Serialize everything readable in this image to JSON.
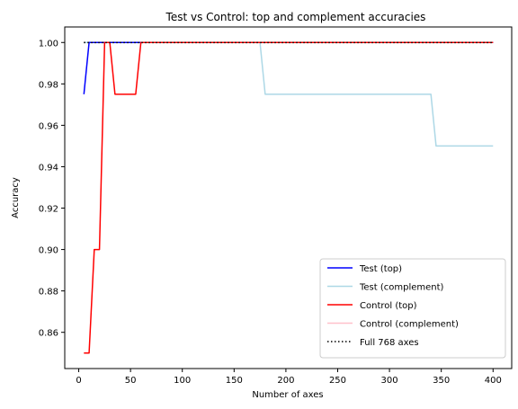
{
  "chart_data": {
    "type": "line",
    "title": "Test vs Control: top and complement accuracies",
    "xlabel": "Number of axes",
    "ylabel": "Accuracy",
    "xlim": [
      -13.5,
      418
    ],
    "ylim": [
      0.8425,
      1.0075
    ],
    "xticks": [
      0,
      50,
      100,
      150,
      200,
      250,
      300,
      350,
      400
    ],
    "yticks": [
      0.86,
      0.88,
      0.9,
      0.92,
      0.94,
      0.96,
      0.98,
      1.0
    ],
    "ytick_labels": [
      "0.86",
      "0.88",
      "0.90",
      "0.92",
      "0.94",
      "0.96",
      "0.98",
      "1.00"
    ],
    "grid": false,
    "legend_position": "lower-right",
    "series": [
      {
        "name": "Test (top)",
        "color": "#0000ff",
        "style": "solid",
        "x": [
          5,
          10,
          15,
          20,
          25,
          30,
          35,
          40,
          45,
          50,
          55,
          60,
          65,
          70,
          75,
          80,
          85,
          90,
          95,
          100,
          150,
          200,
          250,
          300,
          350,
          400
        ],
        "y": [
          0.975,
          1.0,
          1.0,
          1.0,
          1.0,
          1.0,
          1.0,
          1.0,
          1.0,
          1.0,
          1.0,
          1.0,
          1.0,
          1.0,
          1.0,
          1.0,
          1.0,
          1.0,
          1.0,
          1.0,
          1.0,
          1.0,
          1.0,
          1.0,
          1.0,
          1.0
        ]
      },
      {
        "name": "Test (complement)",
        "color": "#add8e6",
        "style": "solid",
        "x": [
          5,
          50,
          100,
          150,
          175,
          180,
          200,
          250,
          300,
          340,
          345,
          350,
          400
        ],
        "y": [
          1.0,
          1.0,
          1.0,
          1.0,
          1.0,
          0.975,
          0.975,
          0.975,
          0.975,
          0.975,
          0.95,
          0.95,
          0.95
        ]
      },
      {
        "name": "Control (top)",
        "color": "#ff0000",
        "style": "solid",
        "x": [
          5,
          10,
          15,
          20,
          25,
          30,
          35,
          40,
          45,
          50,
          55,
          60,
          65,
          70,
          100,
          150,
          200,
          250,
          300,
          350,
          400
        ],
        "y": [
          0.85,
          0.85,
          0.9,
          0.9,
          1.0,
          1.0,
          0.975,
          0.975,
          0.975,
          0.975,
          0.975,
          1.0,
          1.0,
          1.0,
          1.0,
          1.0,
          1.0,
          1.0,
          1.0,
          1.0,
          1.0
        ]
      },
      {
        "name": "Control (complement)",
        "color": "#ffc0cb",
        "style": "solid",
        "x": [
          5,
          50,
          100,
          150,
          200,
          250,
          300,
          350,
          400
        ],
        "y": [
          1.0,
          1.0,
          1.0,
          1.0,
          1.0,
          1.0,
          1.0,
          1.0,
          1.0
        ]
      },
      {
        "name": "Full 768 axes",
        "color": "#000000",
        "style": "dotted",
        "x": [
          5,
          400
        ],
        "y": [
          1.0,
          1.0
        ]
      }
    ]
  }
}
